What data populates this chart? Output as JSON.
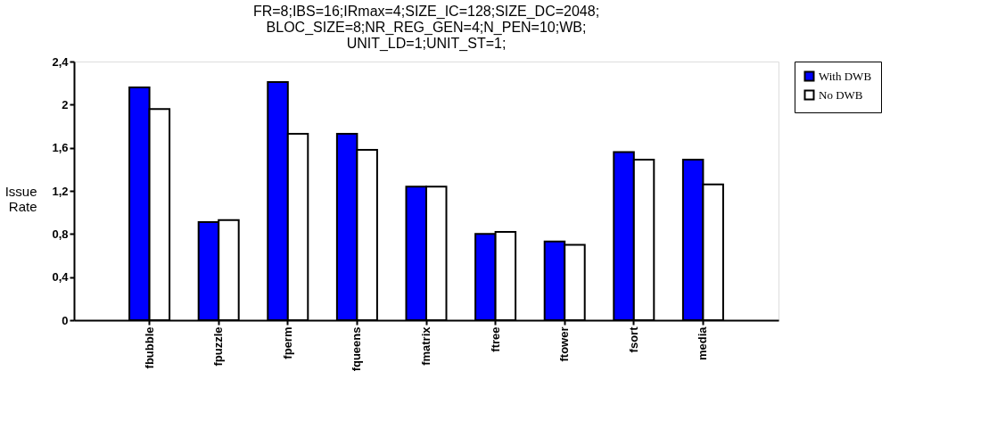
{
  "chart_data": {
    "type": "bar",
    "title": [
      "FR=8;IBS=16;IRmax=4;SIZE_IC=128;SIZE_DC=2048;",
      "BLOC_SIZE=8;NR_REG_GEN=4;N_PEN=10;WB;",
      "UNIT_LD=1;UNIT_ST=1;"
    ],
    "ylabel": [
      "Issue",
      "Rate"
    ],
    "categories": [
      "fbubble",
      "fpuzzle",
      "fperm",
      "fqueens",
      "fmatrix",
      "ftree",
      "ftower",
      "fsort",
      "media"
    ],
    "series": [
      {
        "name": "With DWB",
        "color": "#0000ff",
        "values": [
          2.16,
          0.91,
          2.21,
          1.73,
          1.24,
          0.8,
          0.73,
          1.56,
          1.49
        ]
      },
      {
        "name": "No DWB",
        "color": "#ffffff",
        "values": [
          1.96,
          0.93,
          1.73,
          1.58,
          1.24,
          0.82,
          0.7,
          1.49,
          1.26
        ]
      }
    ],
    "ylim": [
      0,
      2.4
    ],
    "yticks": [
      0,
      {
        "value": 0.4,
        "label": "0,4"
      },
      {
        "value": 0.8,
        "label": "0,8"
      },
      {
        "value": 1.2,
        "label": "1,2"
      },
      {
        "value": 1.6,
        "label": "1,6"
      },
      2,
      {
        "value": 2.4,
        "label": "2,4"
      }
    ],
    "grid": false,
    "legend": "right"
  }
}
